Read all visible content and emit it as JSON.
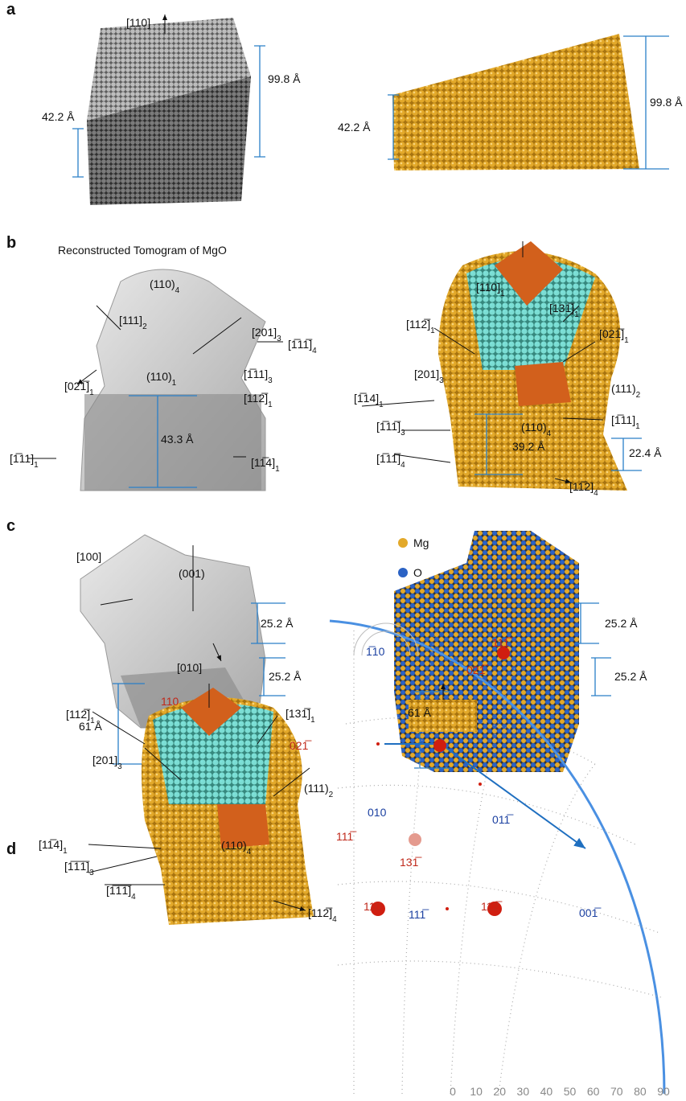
{
  "panel_labels": [
    "a",
    "b",
    "c",
    "d"
  ],
  "a": {
    "direction": "[110]",
    "left_tall": "99.8 Å",
    "left_short": "42.2 Å",
    "right_short": "42.2 Å",
    "right_tall": "99.8 Å"
  },
  "b": {
    "title": "Reconstructed Tomogram of MgO",
    "left": [
      {
        "text": "(110)",
        "sub": "4"
      },
      {
        "text": "[111]",
        "sub": "2"
      },
      {
        "text": "[201]",
        "sub": "3"
      },
      {
        "text": "[1̅11̅]",
        "sub": "4"
      },
      {
        "text": "[021̅]",
        "sub": "1"
      },
      {
        "text": "(110)",
        "sub": "1"
      },
      {
        "text": "[1̅11]",
        "sub": "3"
      },
      {
        "text": "[112̅]",
        "sub": "1"
      },
      {
        "text": "[1̅11]",
        "sub": "1"
      },
      "43.3 Å",
      {
        "text": "[11̅4]",
        "sub": "1"
      }
    ],
    "right": [
      {
        "text": "[110]",
        "sub": "1"
      },
      {
        "text": "[131̅]",
        "sub": "1"
      },
      {
        "text": "[112̅]",
        "sub": "1"
      },
      {
        "text": "[021̅]",
        "sub": "1"
      },
      {
        "text": "[201]",
        "sub": "3"
      },
      {
        "text": "(111)",
        "sub": "2"
      },
      {
        "text": "[1̅14]",
        "sub": "1"
      },
      {
        "text": "[1̅11]",
        "sub": "1"
      },
      {
        "text": "(110)",
        "sub": "4"
      },
      {
        "text": "[1̅11̅]",
        "sub": "3"
      },
      {
        "text": "[1̅11̅]",
        "sub": "4"
      },
      "39.2 Å",
      "22.4 Å",
      {
        "text": "[11̅2]",
        "sub": "4"
      }
    ]
  },
  "c": {
    "left": [
      "[100]",
      "(001)",
      "25.2 Å",
      "[010]",
      "25.2 Å",
      "61 Å"
    ],
    "legend": [
      "Mg",
      "O"
    ],
    "right": [
      "25.2 Å",
      "25.2 Å",
      "61 Å"
    ]
  },
  "d": {
    "model": [
      "110",
      {
        "text": "[112̅]",
        "sub": "1"
      },
      {
        "text": "[131̅]",
        "sub": "1"
      },
      {
        "text": "[201]",
        "sub": "3"
      },
      "021̅",
      {
        "text": "(111)",
        "sub": "2"
      },
      {
        "text": "[11̅4]",
        "sub": "1"
      },
      {
        "text": "[1̅1̅1̅]",
        "sub": "3"
      },
      {
        "text": "[1̅1̅1̅]",
        "sub": "4"
      },
      {
        "text": "(110)",
        "sub": "4"
      },
      {
        "text": "[112̅]",
        "sub": "4"
      }
    ],
    "stereogram": [
      "1̅10",
      "111̅",
      "021̅",
      "111̅",
      "010",
      "011̅",
      "131̅",
      "110",
      "111̅",
      "112̅",
      "001̅"
    ],
    "stereo_ticks": [
      0,
      10,
      20,
      30,
      40,
      50,
      60,
      70,
      80,
      90
    ]
  }
}
